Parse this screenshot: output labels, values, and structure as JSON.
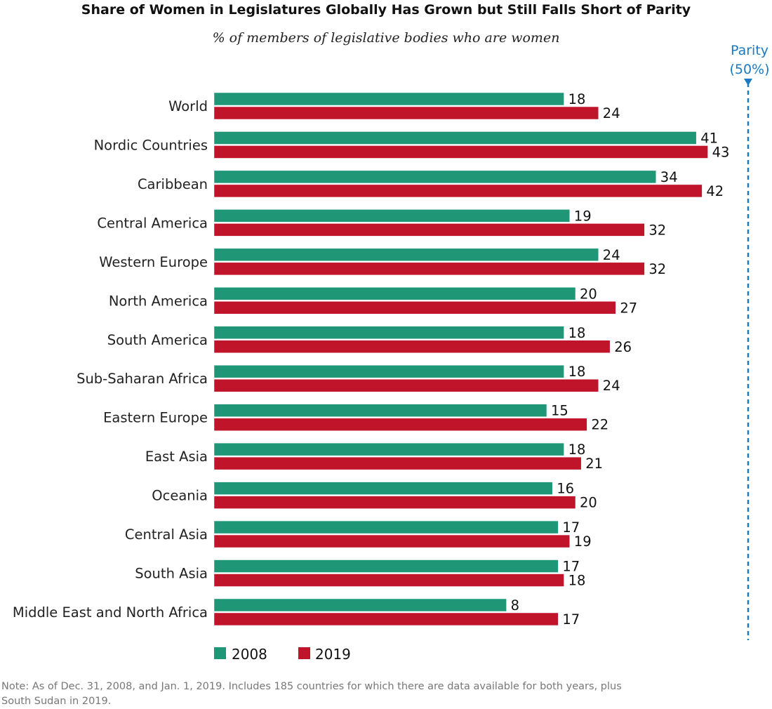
{
  "chart_data": {
    "type": "bar",
    "orientation": "horizontal",
    "title": "Share of Women in Legislatures Globally Has Grown but Still Falls Short of Parity",
    "subtitle": "% of members of legislative bodies who are women",
    "categories": [
      "World",
      "Nordic Countries",
      "Caribbean",
      "Central America",
      "Western Europe",
      "North America",
      "South America",
      "Sub-Saharan Africa",
      "Eastern Europe",
      "East Asia",
      "Oceania",
      "Central Asia",
      "South Asia",
      "Middle East and North Africa"
    ],
    "series": [
      {
        "name": "2008",
        "color": "#1f9777",
        "values": [
          18,
          41,
          34,
          19,
          24,
          20,
          18,
          18,
          15,
          18,
          16,
          17,
          17,
          8
        ]
      },
      {
        "name": "2019",
        "color": "#c0142b",
        "values": [
          24,
          43,
          42,
          32,
          32,
          27,
          26,
          24,
          22,
          21,
          20,
          19,
          18,
          17
        ]
      }
    ],
    "reference_line": {
      "value": 50,
      "label_line1": "Parity",
      "label_line2": "(50%)",
      "color": "#1a7ac4"
    },
    "legend_position": "bottom-left",
    "grid": false,
    "note_line1": "Note: As of Dec. 31, 2008, and Jan. 1, 2019. Includes 185 countries for which there are data available for both years, plus",
    "note_line2": "South Sudan in 2019."
  }
}
